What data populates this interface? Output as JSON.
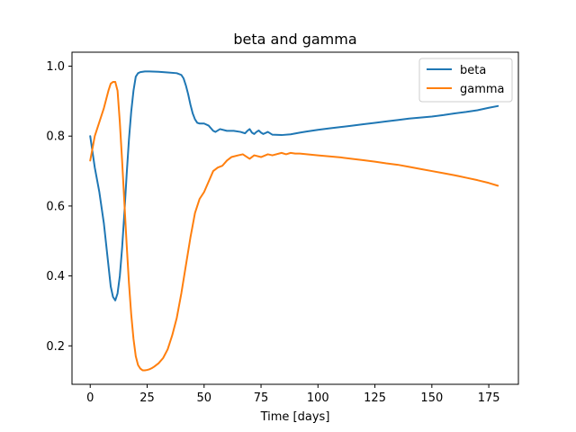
{
  "chart_data": {
    "type": "line",
    "title": "beta and gamma",
    "xlabel": "Time [days]",
    "ylabel": "",
    "xlim": [
      -8,
      188
    ],
    "ylim": [
      0.09,
      1.04
    ],
    "xticks": [
      0,
      25,
      50,
      75,
      100,
      125,
      150,
      175
    ],
    "yticks": [
      0.2,
      0.4,
      0.6,
      0.8,
      1.0
    ],
    "ytick_labels": [
      "0.2",
      "0.4",
      "0.6",
      "0.8",
      "1.0"
    ],
    "grid": false,
    "legend_position": "upper-right",
    "series": [
      {
        "name": "beta",
        "color": "#1f77b4",
        "x": [
          0,
          2,
          4,
          6,
          8,
          9,
          10,
          11,
          12,
          13,
          14,
          15,
          16,
          17,
          18,
          19,
          20,
          21,
          22,
          23,
          24,
          26,
          30,
          34,
          38,
          40,
          41,
          42,
          43,
          44,
          45,
          46,
          47,
          48,
          50,
          52,
          54,
          55,
          57,
          60,
          63,
          66,
          68,
          69,
          70,
          71,
          72,
          73,
          74,
          75,
          76,
          78,
          80,
          84,
          88,
          92,
          95,
          100,
          105,
          110,
          115,
          120,
          125,
          130,
          135,
          140,
          145,
          150,
          155,
          160,
          165,
          170,
          175,
          179
        ],
        "y": [
          0.8,
          0.71,
          0.64,
          0.55,
          0.43,
          0.37,
          0.34,
          0.33,
          0.35,
          0.4,
          0.48,
          0.58,
          0.69,
          0.79,
          0.87,
          0.93,
          0.97,
          0.98,
          0.983,
          0.984,
          0.985,
          0.985,
          0.984,
          0.982,
          0.98,
          0.975,
          0.965,
          0.945,
          0.92,
          0.89,
          0.865,
          0.848,
          0.838,
          0.836,
          0.836,
          0.83,
          0.815,
          0.812,
          0.82,
          0.815,
          0.815,
          0.812,
          0.808,
          0.815,
          0.82,
          0.81,
          0.806,
          0.812,
          0.816,
          0.81,
          0.806,
          0.812,
          0.804,
          0.803,
          0.805,
          0.81,
          0.813,
          0.818,
          0.822,
          0.826,
          0.83,
          0.834,
          0.838,
          0.842,
          0.846,
          0.85,
          0.853,
          0.856,
          0.86,
          0.865,
          0.869,
          0.874,
          0.881,
          0.886
        ]
      },
      {
        "name": "gamma",
        "color": "#ff7f0e",
        "x": [
          0,
          2,
          4,
          6,
          8,
          9,
          10,
          11,
          12,
          13,
          14,
          15,
          16,
          17,
          18,
          19,
          20,
          21,
          22,
          23,
          24,
          25,
          26,
          27,
          28,
          30,
          32,
          34,
          36,
          38,
          40,
          42,
          44,
          46,
          48,
          50,
          52,
          54,
          56,
          58,
          60,
          62,
          65,
          67,
          70,
          72,
          75,
          78,
          80,
          84,
          86,
          88,
          90,
          92,
          95,
          100,
          105,
          110,
          115,
          120,
          125,
          130,
          135,
          140,
          145,
          150,
          155,
          160,
          165,
          170,
          175,
          179
        ],
        "y": [
          0.73,
          0.8,
          0.84,
          0.88,
          0.93,
          0.95,
          0.955,
          0.955,
          0.93,
          0.84,
          0.73,
          0.61,
          0.49,
          0.38,
          0.29,
          0.22,
          0.17,
          0.145,
          0.135,
          0.13,
          0.13,
          0.131,
          0.133,
          0.136,
          0.14,
          0.15,
          0.165,
          0.19,
          0.23,
          0.28,
          0.35,
          0.43,
          0.51,
          0.58,
          0.62,
          0.64,
          0.67,
          0.7,
          0.71,
          0.715,
          0.73,
          0.74,
          0.745,
          0.748,
          0.735,
          0.745,
          0.74,
          0.748,
          0.745,
          0.752,
          0.748,
          0.752,
          0.75,
          0.75,
          0.748,
          0.745,
          0.742,
          0.739,
          0.735,
          0.731,
          0.727,
          0.722,
          0.718,
          0.712,
          0.706,
          0.7,
          0.694,
          0.688,
          0.681,
          0.674,
          0.666,
          0.658
        ]
      }
    ]
  }
}
